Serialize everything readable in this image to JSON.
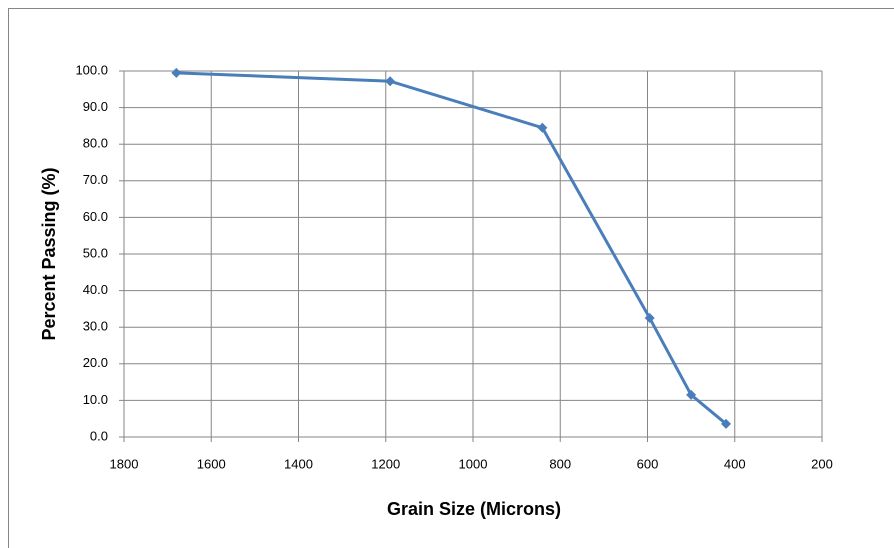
{
  "chart_data": {
    "type": "line",
    "x_label": "Grain Size (Microns)",
    "y_label": "Percent Passing  (%)",
    "x": [
      1680,
      1190,
      841,
      595,
      500,
      420
    ],
    "series": [
      {
        "name": "Percent Passing",
        "color": "#4a7ebb",
        "values": [
          99.5,
          97.2,
          84.5,
          32.5,
          11.5,
          3.6
        ]
      }
    ],
    "xlim": [
      1800,
      200
    ],
    "xticks": [
      1800,
      1600,
      1400,
      1200,
      1000,
      800,
      600,
      400,
      200
    ],
    "ylim": [
      0,
      100
    ],
    "yticks": [
      {
        "value": 0,
        "label": "0.0"
      },
      {
        "value": 10,
        "label": "10.0"
      },
      {
        "value": 20,
        "label": "20.0"
      },
      {
        "value": 30,
        "label": "30.0"
      },
      {
        "value": 40,
        "label": "40.0"
      },
      {
        "value": 50,
        "label": "50.0"
      },
      {
        "value": 60,
        "label": "60.0"
      },
      {
        "value": 70,
        "label": "70.0"
      },
      {
        "value": 80,
        "label": "80.0"
      },
      {
        "value": 90,
        "label": "90.0"
      },
      {
        "value": 100,
        "label": "100.0"
      }
    ],
    "grid": true
  }
}
